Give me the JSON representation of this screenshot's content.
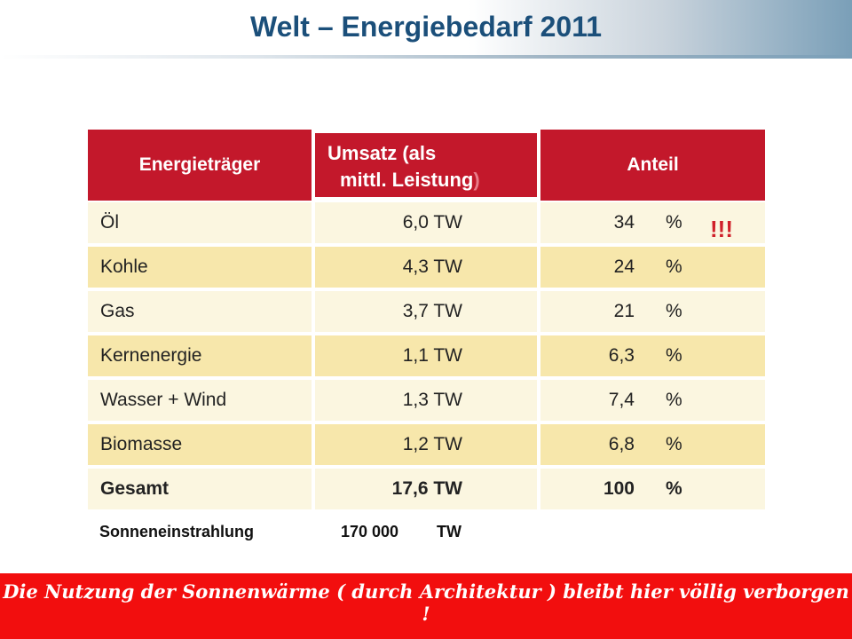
{
  "title": "Welt – Energiebedarf  2011",
  "table": {
    "headers": {
      "energietraeger": "Energieträger",
      "umsatz_line1": "Umsatz  (als",
      "umsatz_line2": "mittl.  Leistung",
      "umsatz_paren": ")",
      "anteil": "Anteil"
    },
    "rows": [
      {
        "name": "Öl",
        "umsatz": "6,0 TW",
        "anteil": "34",
        "unit": "%"
      },
      {
        "name": "Kohle",
        "umsatz": "4,3 TW",
        "anteil": "24",
        "unit": "%"
      },
      {
        "name": "Gas",
        "umsatz": "3,7 TW",
        "anteil": "21",
        "unit": "%"
      },
      {
        "name": "Kernenergie",
        "umsatz": "1,1 TW",
        "anteil": "6,3",
        "unit": "%"
      },
      {
        "name": "Wasser + Wind",
        "umsatz": "1,3 TW",
        "anteil": "7,4",
        "unit": "%"
      },
      {
        "name": "Biomasse",
        "umsatz": "1,2 TW",
        "anteil": "6,8",
        "unit": "%"
      },
      {
        "name": "Gesamt",
        "umsatz": "17,6 TW",
        "anteil": "100",
        "unit": "%"
      }
    ]
  },
  "highlight": "!!!",
  "sun": {
    "label": "Sonneneinstrahlung",
    "value": "170 000",
    "unit": "TW"
  },
  "footer": "Die Nutzung der Sonnenwärme ( durch Architektur ) bleibt hier völlig verborgen !",
  "colors": {
    "header_red": "#c3182b",
    "row_light": "#fbf6e0",
    "row_dark": "#f7e7ab",
    "footer_red": "#f20e0e",
    "title_blue": "#1b4f7a"
  }
}
